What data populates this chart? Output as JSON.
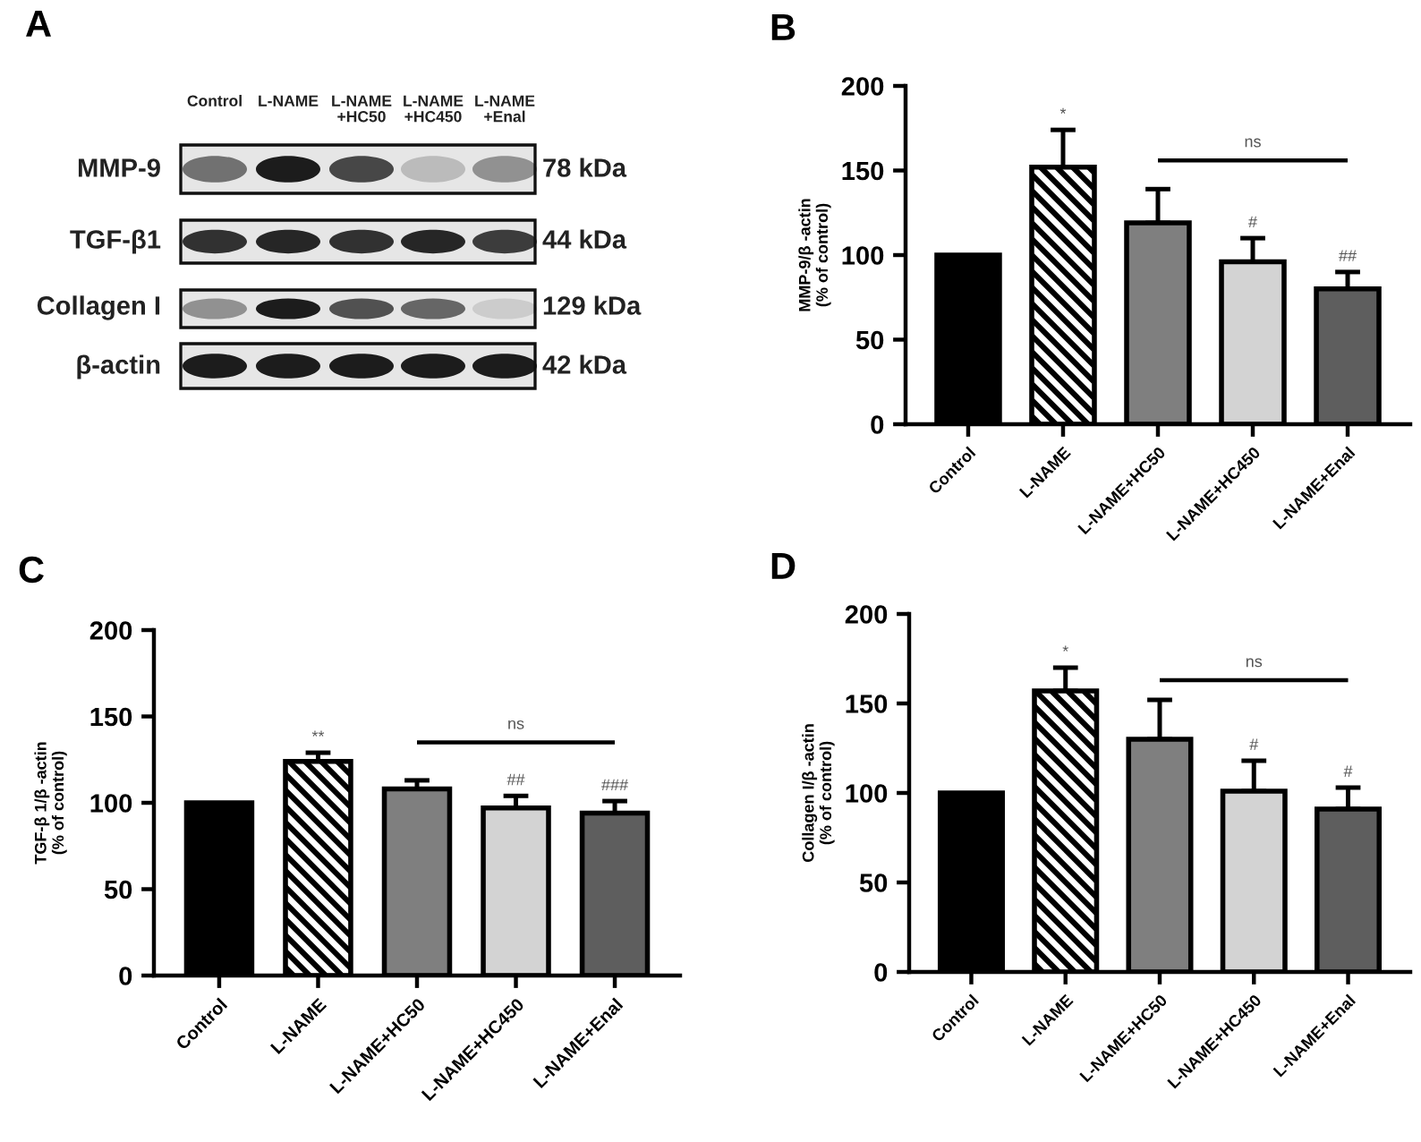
{
  "chart_data": [
    {
      "type": "other",
      "title": "A",
      "annotations": [
        "Control",
        "L-NAME",
        "L-NAME\n+HC50",
        "L-NAME\n+HC450",
        "L-NAME\n+Enal",
        "MMP-9",
        "TGF-β1",
        "Collagen I",
        "β-actin",
        "78 kDa",
        "44 kDa",
        "129 kDa",
        "42 kDa"
      ]
    },
    {
      "type": "bar",
      "title": "B",
      "ylabel": "MMP-9/β -actin\n(% of control)",
      "categories": [
        "Control",
        "L-NAME",
        "L-NAME+HC50",
        "L-NAME+HC450",
        "L-NAME+Enal"
      ],
      "values": [
        100,
        152,
        119,
        96,
        80
      ],
      "colors": [
        "#000000",
        "#ffffff",
        "#7f7f7f",
        "#d3d3d3",
        "#5e5e5e"
      ],
      "errors": [
        null,
        [
          152,
          174
        ],
        [
          119,
          139
        ],
        [
          96,
          110
        ],
        [
          80,
          90
        ]
      ],
      "ylim": [
        0,
        200
      ],
      "yticks": [
        0,
        50,
        100,
        150,
        200
      ],
      "annotations": [
        {
          "text": "*",
          "x": "L-NAME",
          "y": 174
        },
        {
          "text": "#",
          "x": "L-NAME+HC450",
          "y": 110
        },
        {
          "text": "##",
          "x": "L-NAME+Enal",
          "y": 90
        },
        "ns"
      ]
    },
    {
      "type": "bar",
      "title": "C",
      "ylabel": "TGF-β 1/β -actin\n(% of control)",
      "categories": [
        "Control",
        "L-NAME",
        "L-NAME+HC50",
        "L-NAME+HC450",
        "L-NAME+Enal"
      ],
      "values": [
        100,
        124,
        108,
        97,
        94
      ],
      "colors": [
        "#000000",
        "#ffffff",
        "#7f7f7f",
        "#d3d3d3",
        "#5e5e5e"
      ],
      "errors": [
        null,
        [
          124,
          129
        ],
        [
          108,
          113
        ],
        [
          97,
          104
        ],
        [
          94,
          101
        ]
      ],
      "ylim": [
        0,
        200
      ],
      "yticks": [
        0,
        50,
        100,
        150,
        200
      ],
      "annotations": [
        {
          "text": "**",
          "x": "L-NAME",
          "y": 129
        },
        {
          "text": "##",
          "x": "L-NAME+HC450",
          "y": 104
        },
        {
          "text": "###",
          "x": "L-NAME+Enal",
          "y": 101
        },
        "ns"
      ]
    },
    {
      "type": "bar",
      "title": "D",
      "ylabel": "Collagen I/β -actin\n(% of control)",
      "categories": [
        "Control",
        "L-NAME",
        "L-NAME+HC50",
        "L-NAME+HC450",
        "L-NAME+Enal"
      ],
      "values": [
        100,
        157,
        130,
        101,
        91
      ],
      "colors": [
        "#000000",
        "#ffffff",
        "#7f7f7f",
        "#d3d3d3",
        "#5e5e5e"
      ],
      "errors": [
        null,
        [
          157,
          170
        ],
        [
          130,
          152
        ],
        [
          101,
          118
        ],
        [
          91,
          103
        ]
      ],
      "ylim": [
        0,
        200
      ],
      "yticks": [
        0,
        50,
        100,
        150,
        200
      ],
      "annotations": [
        {
          "text": "*",
          "x": "L-NAME",
          "y": 170
        },
        {
          "text": "#",
          "x": "L-NAME+HC450",
          "y": 118
        },
        {
          "text": "#",
          "x": "L-NAME+Enal",
          "y": 103
        },
        "ns"
      ]
    }
  ]
}
